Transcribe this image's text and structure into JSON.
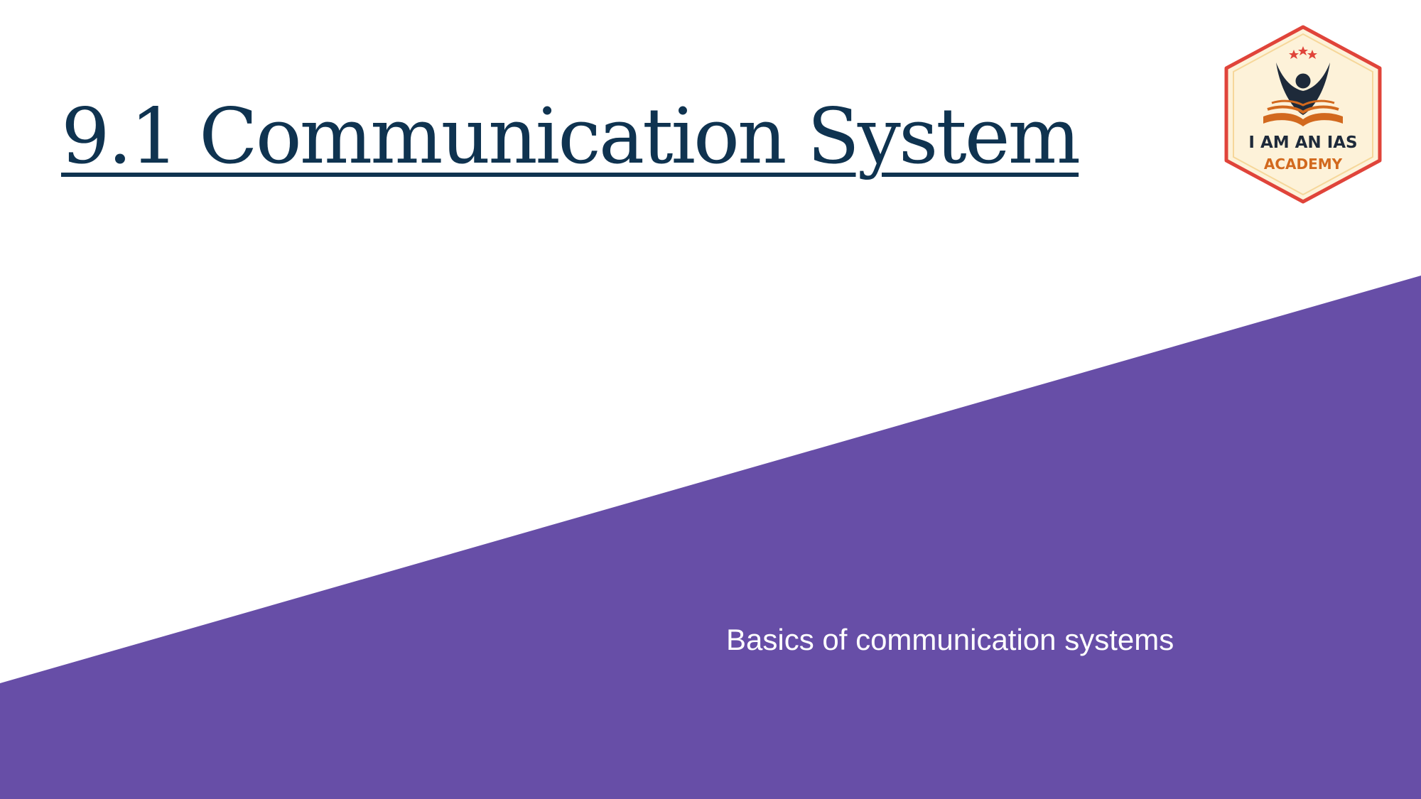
{
  "slide": {
    "title": "9.1 Communication System",
    "subtitle": "Basics of communication systems"
  },
  "logo": {
    "icon": "academy-logo-icon",
    "line1": "I AM AN IAS",
    "line2": "ACADEMY"
  },
  "colors": {
    "accent_purple": "#674ea7",
    "title_navy": "#0f3350",
    "logo_border": "#e0443a",
    "logo_fill": "#fdf2d9",
    "logo_orange": "#d2691e",
    "logo_dark": "#1e2a3a"
  }
}
